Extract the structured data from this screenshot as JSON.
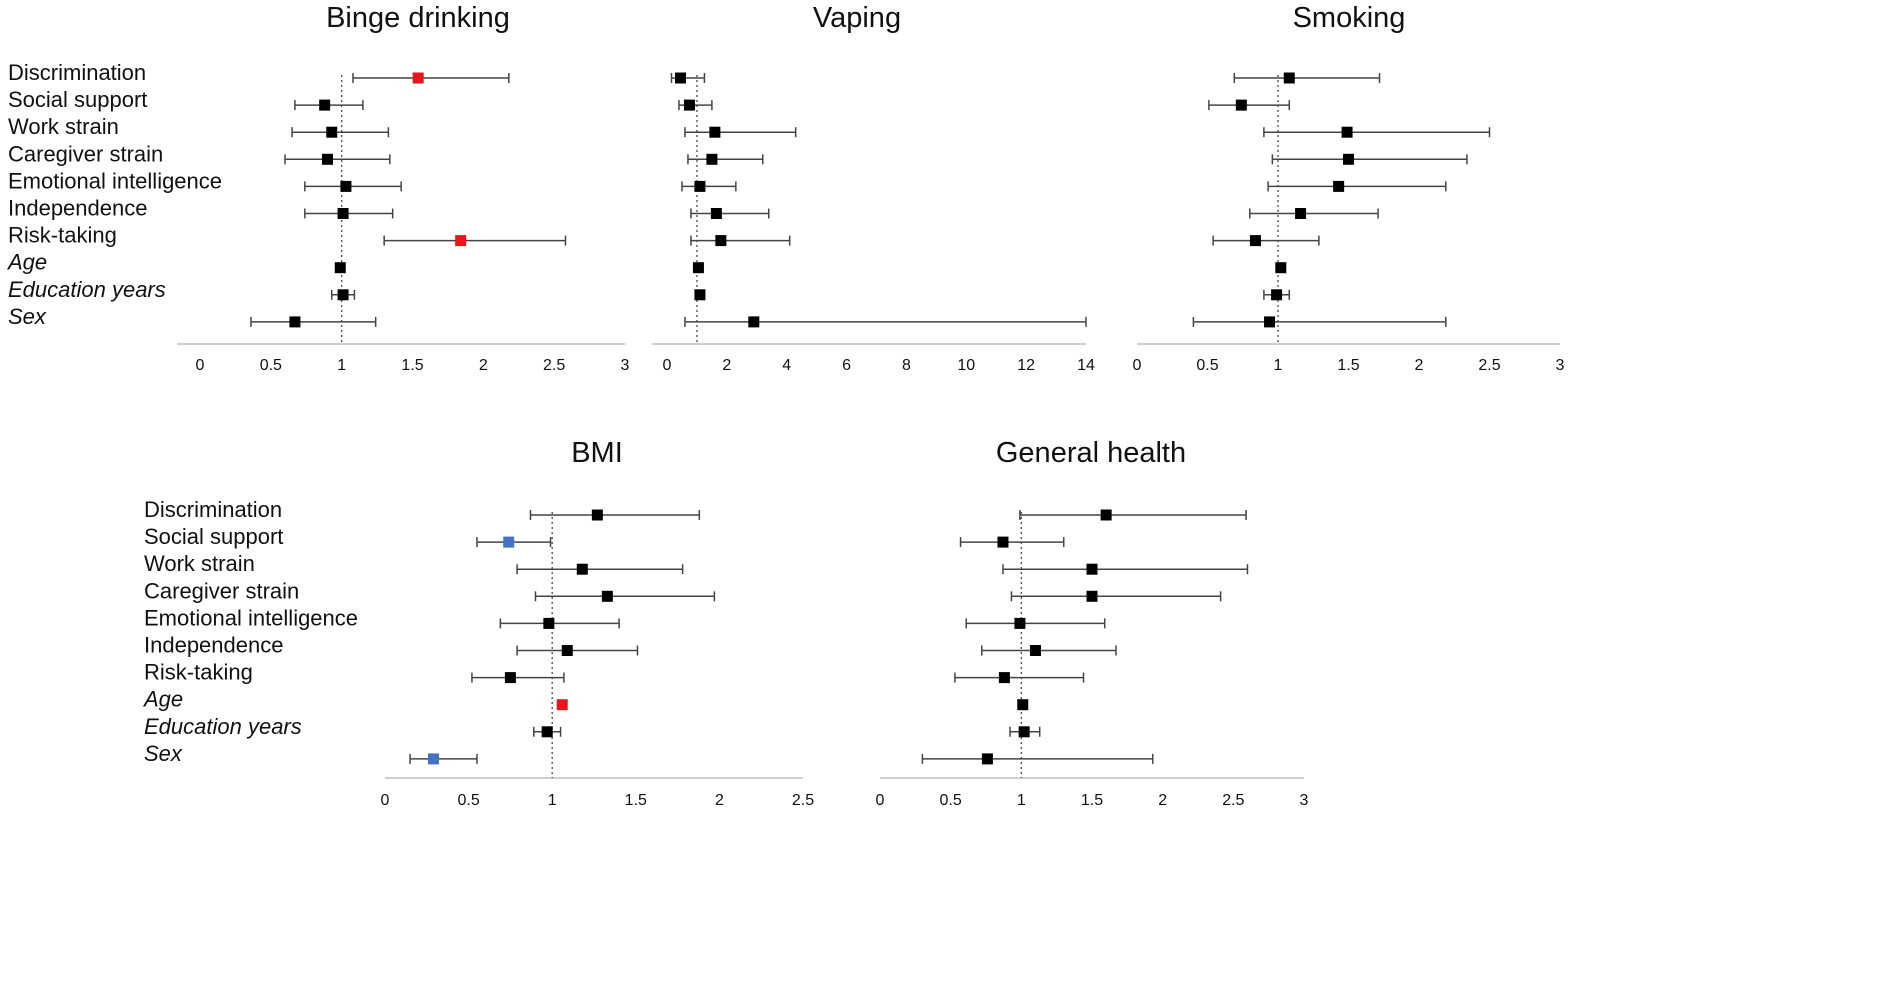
{
  "chart_data": [
    {
      "type": "forest",
      "title": "Binge drinking",
      "reference_line": 1,
      "xlim": [
        0,
        3
      ],
      "xticks": [
        "0",
        "0.5",
        "1",
        "1.5",
        "2",
        "2.5",
        "3"
      ],
      "tick_values": [
        0,
        0.5,
        1,
        1.5,
        2,
        2.5,
        3
      ],
      "rows": [
        {
          "label": "Discrimination",
          "italic": false,
          "est": 1.54,
          "lo": 1.08,
          "hi": 2.18,
          "color": "#e8161b"
        },
        {
          "label": "Social support",
          "italic": false,
          "est": 0.88,
          "lo": 0.67,
          "hi": 1.15,
          "color": "#000000"
        },
        {
          "label": "Work strain",
          "italic": false,
          "est": 0.93,
          "lo": 0.65,
          "hi": 1.33,
          "color": "#000000"
        },
        {
          "label": "Caregiver strain",
          "italic": false,
          "est": 0.9,
          "lo": 0.6,
          "hi": 1.34,
          "color": "#000000"
        },
        {
          "label": "Emotional intelligence",
          "italic": false,
          "est": 1.03,
          "lo": 0.74,
          "hi": 1.42,
          "color": "#000000"
        },
        {
          "label": "Independence",
          "italic": false,
          "est": 1.01,
          "lo": 0.74,
          "hi": 1.36,
          "color": "#000000"
        },
        {
          "label": "Risk-taking",
          "italic": false,
          "est": 1.84,
          "lo": 1.3,
          "hi": 2.58,
          "color": "#e8161b"
        },
        {
          "label": "Age",
          "italic": true,
          "est": 0.99,
          "lo": 0.98,
          "hi": 1.0,
          "color": "#000000"
        },
        {
          "label": "Education years",
          "italic": true,
          "est": 1.01,
          "lo": 0.93,
          "hi": 1.09,
          "color": "#000000"
        },
        {
          "label": "Sex",
          "italic": true,
          "est": 0.67,
          "lo": 0.36,
          "hi": 1.24,
          "color": "#000000"
        }
      ]
    },
    {
      "type": "forest",
      "title": "Vaping",
      "reference_line": 1,
      "xlim": [
        0,
        14
      ],
      "xticks": [
        "0",
        "2",
        "4",
        "6",
        "8",
        "10",
        "12",
        "14"
      ],
      "tick_values": [
        0,
        2,
        4,
        6,
        8,
        10,
        12,
        14
      ],
      "rows": [
        {
          "label": "Discrimination",
          "italic": false,
          "est": 0.45,
          "lo": 0.15,
          "hi": 1.25,
          "color": "#000000"
        },
        {
          "label": "Social support",
          "italic": false,
          "est": 0.75,
          "lo": 0.4,
          "hi": 1.5,
          "color": "#000000"
        },
        {
          "label": "Work strain",
          "italic": false,
          "est": 1.6,
          "lo": 0.6,
          "hi": 4.3,
          "color": "#000000"
        },
        {
          "label": "Caregiver strain",
          "italic": false,
          "est": 1.5,
          "lo": 0.7,
          "hi": 3.2,
          "color": "#000000"
        },
        {
          "label": "Emotional intelligence",
          "italic": false,
          "est": 1.1,
          "lo": 0.5,
          "hi": 2.3,
          "color": "#000000"
        },
        {
          "label": "Independence",
          "italic": false,
          "est": 1.65,
          "lo": 0.8,
          "hi": 3.4,
          "color": "#000000"
        },
        {
          "label": "Risk-taking",
          "italic": false,
          "est": 1.8,
          "lo": 0.8,
          "hi": 4.1,
          "color": "#000000"
        },
        {
          "label": "Age",
          "italic": true,
          "est": 1.05,
          "lo": 1.0,
          "hi": 1.1,
          "color": "#000000"
        },
        {
          "label": "Education years",
          "italic": true,
          "est": 1.1,
          "lo": 0.95,
          "hi": 1.2,
          "color": "#000000"
        },
        {
          "label": "Sex",
          "italic": true,
          "est": 2.9,
          "lo": 0.6,
          "hi": 14.0,
          "color": "#000000"
        }
      ]
    },
    {
      "type": "forest",
      "title": "Smoking",
      "reference_line": 1,
      "xlim": [
        0,
        3
      ],
      "xticks": [
        "0",
        "0.5",
        "1",
        "1.5",
        "2",
        "2.5",
        "3"
      ],
      "tick_values": [
        0,
        0.5,
        1,
        1.5,
        2,
        2.5,
        3
      ],
      "rows": [
        {
          "label": "Discrimination",
          "italic": false,
          "est": 1.08,
          "lo": 0.69,
          "hi": 1.72,
          "color": "#000000"
        },
        {
          "label": "Social support",
          "italic": false,
          "est": 0.74,
          "lo": 0.51,
          "hi": 1.08,
          "color": "#000000"
        },
        {
          "label": "Work strain",
          "italic": false,
          "est": 1.49,
          "lo": 0.9,
          "hi": 2.5,
          "color": "#000000"
        },
        {
          "label": "Caregiver strain",
          "italic": false,
          "est": 1.5,
          "lo": 0.96,
          "hi": 2.34,
          "color": "#000000"
        },
        {
          "label": "Emotional intelligence",
          "italic": false,
          "est": 1.43,
          "lo": 0.93,
          "hi": 2.19,
          "color": "#000000"
        },
        {
          "label": "Independence",
          "italic": false,
          "est": 1.16,
          "lo": 0.8,
          "hi": 1.71,
          "color": "#000000"
        },
        {
          "label": "Risk-taking",
          "italic": false,
          "est": 0.84,
          "lo": 0.54,
          "hi": 1.29,
          "color": "#000000"
        },
        {
          "label": "Age",
          "italic": true,
          "est": 1.02,
          "lo": 1.0,
          "hi": 1.04,
          "color": "#000000"
        },
        {
          "label": "Education years",
          "italic": true,
          "est": 0.99,
          "lo": 0.9,
          "hi": 1.08,
          "color": "#000000"
        },
        {
          "label": "Sex",
          "italic": true,
          "est": 0.94,
          "lo": 0.4,
          "hi": 2.19,
          "color": "#000000"
        }
      ]
    },
    {
      "type": "forest",
      "title": "BMI",
      "reference_line": 1,
      "xlim": [
        0,
        2.5
      ],
      "xticks": [
        "0",
        "0.5",
        "1",
        "1.5",
        "2",
        "2.5"
      ],
      "tick_values": [
        0,
        0.5,
        1,
        1.5,
        2,
        2.5
      ],
      "rows": [
        {
          "label": "Discrimination",
          "italic": false,
          "est": 1.27,
          "lo": 0.87,
          "hi": 1.88,
          "color": "#000000"
        },
        {
          "label": "Social support",
          "italic": false,
          "est": 0.74,
          "lo": 0.55,
          "hi": 0.99,
          "color": "#4472c4"
        },
        {
          "label": "Work strain",
          "italic": false,
          "est": 1.18,
          "lo": 0.79,
          "hi": 1.78,
          "color": "#000000"
        },
        {
          "label": "Caregiver strain",
          "italic": false,
          "est": 1.33,
          "lo": 0.9,
          "hi": 1.97,
          "color": "#000000"
        },
        {
          "label": "Emotional intelligence",
          "italic": false,
          "est": 0.98,
          "lo": 0.69,
          "hi": 1.4,
          "color": "#000000"
        },
        {
          "label": "Independence",
          "italic": false,
          "est": 1.09,
          "lo": 0.79,
          "hi": 1.51,
          "color": "#000000"
        },
        {
          "label": "Risk-taking",
          "italic": false,
          "est": 0.75,
          "lo": 0.52,
          "hi": 1.07,
          "color": "#000000"
        },
        {
          "label": "Age",
          "italic": true,
          "est": 1.06,
          "lo": 1.04,
          "hi": 1.08,
          "color": "#e8161b"
        },
        {
          "label": "Education years",
          "italic": true,
          "est": 0.97,
          "lo": 0.89,
          "hi": 1.05,
          "color": "#000000"
        },
        {
          "label": "Sex",
          "italic": true,
          "est": 0.29,
          "lo": 0.15,
          "hi": 0.55,
          "color": "#4472c4"
        }
      ]
    },
    {
      "type": "forest",
      "title": "General health",
      "reference_line": 1,
      "xlim": [
        0,
        3
      ],
      "xticks": [
        "0",
        "0.5",
        "1",
        "1.5",
        "2",
        "2.5",
        "3"
      ],
      "tick_values": [
        0,
        0.5,
        1,
        1.5,
        2,
        2.5,
        3
      ],
      "rows": [
        {
          "label": "Discrimination",
          "italic": false,
          "est": 1.6,
          "lo": 0.99,
          "hi": 2.59,
          "color": "#000000"
        },
        {
          "label": "Social support",
          "italic": false,
          "est": 0.87,
          "lo": 0.57,
          "hi": 1.3,
          "color": "#000000"
        },
        {
          "label": "Work strain",
          "italic": false,
          "est": 1.5,
          "lo": 0.87,
          "hi": 2.6,
          "color": "#000000"
        },
        {
          "label": "Caregiver strain",
          "italic": false,
          "est": 1.5,
          "lo": 0.93,
          "hi": 2.41,
          "color": "#000000"
        },
        {
          "label": "Emotional intelligence",
          "italic": false,
          "est": 0.99,
          "lo": 0.61,
          "hi": 1.59,
          "color": "#000000"
        },
        {
          "label": "Independence",
          "italic": false,
          "est": 1.1,
          "lo": 0.72,
          "hi": 1.67,
          "color": "#000000"
        },
        {
          "label": "Risk-taking",
          "italic": false,
          "est": 0.88,
          "lo": 0.53,
          "hi": 1.44,
          "color": "#000000"
        },
        {
          "label": "Age",
          "italic": true,
          "est": 1.01,
          "lo": 0.99,
          "hi": 1.03,
          "color": "#000000"
        },
        {
          "label": "Education years",
          "italic": true,
          "est": 1.02,
          "lo": 0.92,
          "hi": 1.13,
          "color": "#000000"
        },
        {
          "label": "Sex",
          "italic": true,
          "est": 0.76,
          "lo": 0.3,
          "hi": 1.93,
          "color": "#000000"
        }
      ]
    }
  ]
}
